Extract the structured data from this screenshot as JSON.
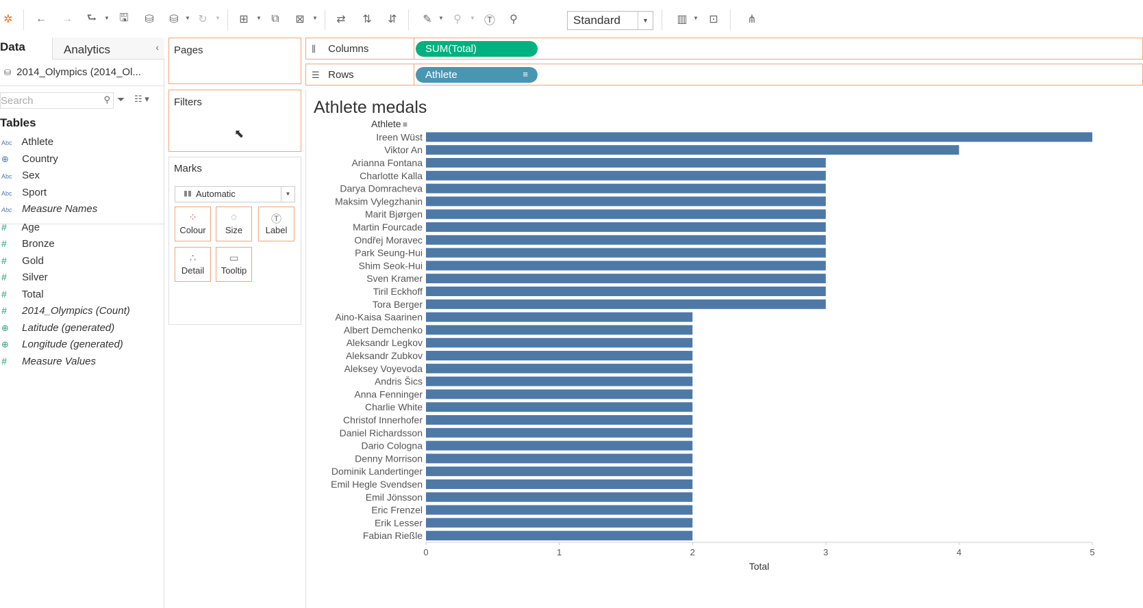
{
  "toolbar": {
    "view_mode": "Standard",
    "icons": [
      "tableau-logo-icon",
      "undo-icon",
      "redo-icon",
      "replay-icon",
      "save-icon",
      "new-datasource-icon",
      "pause-icon",
      "refresh-icon",
      "new-worksheet-icon",
      "duplicate-sheet-icon",
      "clear-sheet-icon",
      "swap-icon",
      "sort-asc-icon",
      "sort-desc-icon",
      "highlight-icon",
      "group-icon",
      "labels-icon",
      "pin-icon",
      "fit-icon",
      "presentation-icon",
      "share-icon"
    ]
  },
  "data_pane": {
    "tab_data": "Data",
    "tab_analytics": "Analytics",
    "datasource": "2014_Olympics (2014_Ol...",
    "search_placeholder": "Search",
    "tables_heading": "Tables",
    "dimensions": [
      {
        "type": "Abc",
        "label": "Athlete"
      },
      {
        "type": "geo",
        "label": "Country"
      },
      {
        "type": "Abc",
        "label": "Sex"
      },
      {
        "type": "Abc",
        "label": "Sport"
      },
      {
        "type": "Abc",
        "label": "Measure Names"
      }
    ],
    "measures": [
      {
        "type": "#",
        "label": "Age"
      },
      {
        "type": "#",
        "label": "Bronze"
      },
      {
        "type": "#",
        "label": "Gold"
      },
      {
        "type": "#",
        "label": "Silver"
      },
      {
        "type": "#",
        "label": "Total"
      },
      {
        "type": "#",
        "label": "2014_Olympics (Count)"
      },
      {
        "type": "geo",
        "label": "Latitude (generated)"
      },
      {
        "type": "geo",
        "label": "Longitude (generated)"
      },
      {
        "type": "#",
        "label": "Measure Values"
      }
    ]
  },
  "cards": {
    "pages": "Pages",
    "filters": "Filters",
    "marks": "Marks",
    "mark_type": "Automatic",
    "mark_buttons": {
      "colour": "Colour",
      "size": "Size",
      "label": "Label",
      "detail": "Detail",
      "tooltip": "Tooltip"
    }
  },
  "shelves": {
    "columns_label": "Columns",
    "columns_pill": "SUM(Total)",
    "rows_label": "Rows",
    "rows_pill": "Athlete"
  },
  "colors": {
    "bar": "#4e79a7",
    "accent_green": "#00b180",
    "accent_blue": "#4996b2",
    "card_border": "#f0a577"
  },
  "chart_data": {
    "type": "bar",
    "title": "Athlete medals",
    "row_header": "Athlete",
    "xlabel": "Total",
    "xlim": [
      0,
      5
    ],
    "xticks": [
      "0",
      "1",
      "2",
      "3",
      "4",
      "5"
    ],
    "categories": [
      "Ireen Wüst",
      "Viktor An",
      "Arianna Fontana",
      "Charlotte Kalla",
      "Darya Domracheva",
      "Maksim Vylegzhanin",
      "Marit Bjørgen",
      "Martin Fourcade",
      "Ondřej Moravec",
      "Park Seung-Hui",
      "Shim Seok-Hui",
      "Sven Kramer",
      "Tiril Eckhoff",
      "Tora Berger",
      "Aino-Kaisa Saarinen",
      "Albert Demchenko",
      "Aleksandr Legkov",
      "Aleksandr Zubkov",
      "Aleksey Voyevoda",
      "Andris Šics",
      "Anna Fenninger",
      "Charlie White",
      "Christof Innerhofer",
      "Daniel Richardsson",
      "Dario Cologna",
      "Denny Morrison",
      "Dominik Landertinger",
      "Emil Hegle Svendsen",
      "Emil Jönsson",
      "Eric Frenzel",
      "Erik Lesser",
      "Fabian Rießle"
    ],
    "values": [
      5,
      4,
      3,
      3,
      3,
      3,
      3,
      3,
      3,
      3,
      3,
      3,
      3,
      3,
      2,
      2,
      2,
      2,
      2,
      2,
      2,
      2,
      2,
      2,
      2,
      2,
      2,
      2,
      2,
      2,
      2,
      2
    ]
  }
}
